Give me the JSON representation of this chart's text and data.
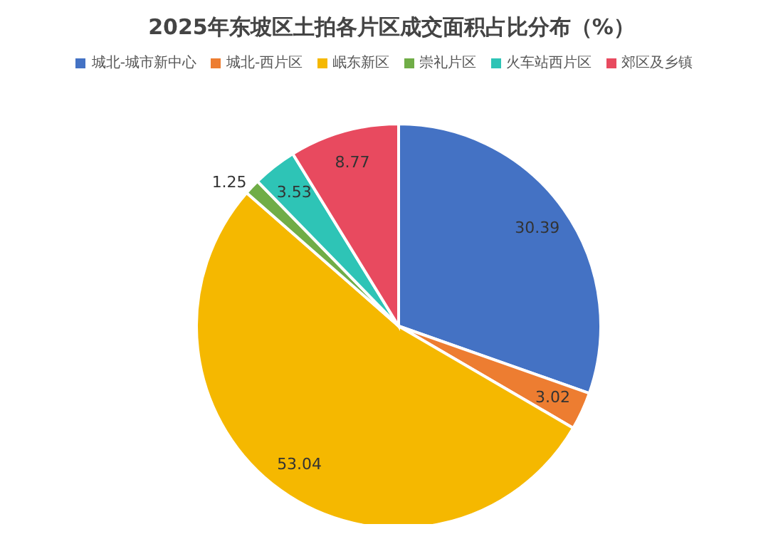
{
  "chart_data": {
    "type": "pie",
    "title": "2025年东坡区土拍各片区成交面积占比分布（%）",
    "categories": [
      "城北-城市新中心",
      "城北-西片区",
      "岷东新区",
      "崇礼片区",
      "火车站西片区",
      "郊区及乡镇"
    ],
    "values": [
      30.39,
      3.02,
      53.04,
      1.25,
      3.53,
      8.77
    ],
    "colors": [
      "#4472c4",
      "#ed7d31",
      "#f5b800",
      "#70ad47",
      "#2ec4b6",
      "#e84a5f"
    ],
    "data_labels": true,
    "legend": "top"
  }
}
